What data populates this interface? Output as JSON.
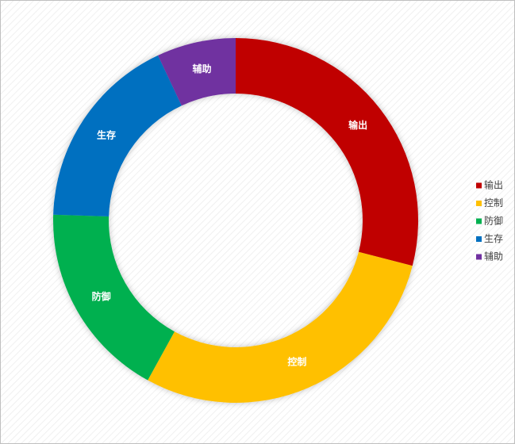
{
  "chart_data": {
    "type": "donut",
    "categories": [
      "输出",
      "控制",
      "防御",
      "生存",
      "辅助"
    ],
    "values": [
      29,
      29,
      17.5,
      17.5,
      7
    ],
    "colors": [
      "#c00000",
      "#ffc000",
      "#00b050",
      "#0070c0",
      "#7030a0"
    ],
    "legend": "right"
  }
}
